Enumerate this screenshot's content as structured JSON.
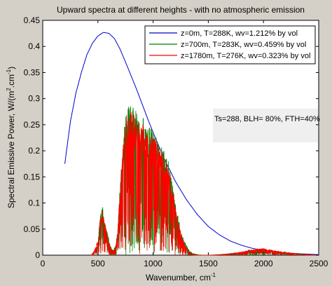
{
  "chart_data": {
    "type": "line",
    "title": "Upward spectra at different heights - with no atmospheric emission",
    "xlabel": "Wavenumber, cm",
    "xlabel_superscript": "-1",
    "ylabel": "Spectral Emissive Power, W/(m",
    "ylabel_sup1": "2",
    "ylabel_mid": ".cm",
    "ylabel_sup2": "-1",
    "ylabel_end": ")",
    "xlim": [
      0,
      2500
    ],
    "ylim": [
      0,
      0.45
    ],
    "x_ticks": [
      "0",
      "500",
      "1000",
      "1500",
      "2000",
      "2500"
    ],
    "y_ticks": [
      "0",
      "0.05",
      "0.1",
      "0.15",
      "0.2",
      "0.25",
      "0.3",
      "0.35",
      "0.4",
      "0.45"
    ],
    "grid": false,
    "legend_position": "top-right",
    "annotation": "Ts=288, BLH= 80%, FTH=40%",
    "series": [
      {
        "name": "z=0m, T=288K, wv=1.212% by vol",
        "color": "#0000cc",
        "style": "smooth",
        "x": [
          200,
          250,
          300,
          350,
          400,
          450,
          500,
          550,
          600,
          650,
          700,
          750,
          800,
          850,
          900,
          950,
          1000,
          1100,
          1200,
          1300,
          1400,
          1500,
          1600,
          1700,
          1800,
          1900,
          2000,
          2100,
          2200,
          2300,
          2400,
          2500
        ],
        "y": [
          0.175,
          0.255,
          0.31,
          0.35,
          0.384,
          0.406,
          0.42,
          0.427,
          0.425,
          0.415,
          0.395,
          0.37,
          0.344,
          0.318,
          0.29,
          0.262,
          0.235,
          0.185,
          0.142,
          0.107,
          0.078,
          0.055,
          0.039,
          0.027,
          0.019,
          0.013,
          0.009,
          0.006,
          0.004,
          0.003,
          0.002,
          0.001
        ]
      },
      {
        "name": "z=700m, T=283K, wv=0.459% by vol",
        "color": "#008000",
        "style": "spiky",
        "x": [
          440,
          470,
          500,
          520,
          540,
          560,
          580,
          600,
          620,
          640,
          660,
          680,
          700,
          720,
          740,
          760,
          780,
          800,
          820,
          840,
          860,
          880,
          900,
          920,
          940,
          960,
          980,
          1000,
          1020,
          1040,
          1060,
          1080,
          1100,
          1120,
          1140,
          1160,
          1180,
          1200,
          1220,
          1240,
          1260,
          1280,
          1300,
          1330,
          1360,
          1400,
          1450,
          1500,
          1600,
          1700,
          1800,
          1850,
          1900,
          1950,
          2000,
          2050,
          2100,
          2150,
          2200,
          2250,
          2300,
          2400,
          2500
        ],
        "y": [
          0.0,
          0.01,
          0.02,
          0.08,
          0.1,
          0.07,
          0.05,
          0.03,
          0.015,
          0.01,
          0.02,
          0.05,
          0.14,
          0.2,
          0.25,
          0.28,
          0.285,
          0.29,
          0.285,
          0.28,
          0.275,
          0.27,
          0.265,
          0.26,
          0.255,
          0.25,
          0.245,
          0.24,
          0.235,
          0.225,
          0.22,
          0.21,
          0.2,
          0.19,
          0.18,
          0.16,
          0.13,
          0.1,
          0.08,
          0.06,
          0.04,
          0.03,
          0.02,
          0.008,
          0.003,
          0.001,
          0.0,
          0.0,
          0.001,
          0.003,
          0.006,
          0.008,
          0.009,
          0.01,
          0.012,
          0.01,
          0.008,
          0.007,
          0.005,
          0.004,
          0.003,
          0.001,
          0.0
        ]
      },
      {
        "name": "z=1780m, T=276K, wv=0.323% by vol",
        "color": "#ff0000",
        "style": "spiky",
        "x": [
          440,
          470,
          500,
          520,
          540,
          560,
          580,
          600,
          620,
          640,
          660,
          680,
          700,
          720,
          740,
          760,
          780,
          800,
          820,
          840,
          860,
          880,
          900,
          920,
          940,
          960,
          980,
          1000,
          1020,
          1040,
          1060,
          1080,
          1100,
          1120,
          1140,
          1160,
          1180,
          1200,
          1220,
          1240,
          1260,
          1280,
          1300,
          1330,
          1360,
          1400,
          1450,
          1500,
          1600,
          1700,
          1800,
          1850,
          1900,
          1950,
          2000,
          2050,
          2100,
          2150,
          2200,
          2250,
          2300,
          2400,
          2500
        ],
        "y": [
          0.0,
          0.01,
          0.03,
          0.075,
          0.09,
          0.065,
          0.045,
          0.025,
          0.012,
          0.008,
          0.015,
          0.045,
          0.13,
          0.19,
          0.24,
          0.27,
          0.275,
          0.28,
          0.275,
          0.27,
          0.265,
          0.26,
          0.255,
          0.25,
          0.245,
          0.24,
          0.235,
          0.23,
          0.225,
          0.215,
          0.21,
          0.2,
          0.19,
          0.18,
          0.17,
          0.15,
          0.12,
          0.095,
          0.075,
          0.055,
          0.035,
          0.025,
          0.015,
          0.005,
          0.002,
          0.0,
          0.0,
          0.0,
          0.001,
          0.003,
          0.006,
          0.009,
          0.011,
          0.012,
          0.013,
          0.011,
          0.009,
          0.007,
          0.006,
          0.004,
          0.003,
          0.001,
          0.0
        ]
      }
    ]
  }
}
